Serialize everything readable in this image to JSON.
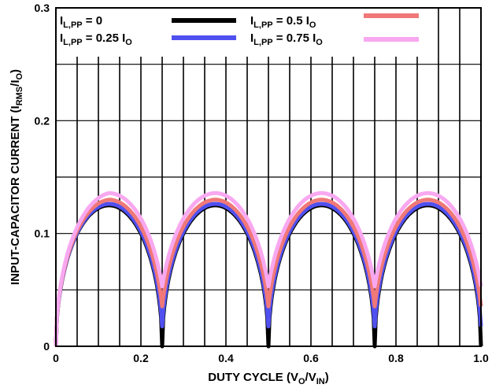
{
  "chart_data": {
    "type": "line",
    "xlabel": {
      "main": "DUTY CYCLE (V",
      "sub1": "O",
      "mid": "/V",
      "sub2": "IN",
      "end": ")"
    },
    "ylabel": {
      "main": "INPUT-CAPACITOR CURRENT (I",
      "sub": "RMS",
      "end": "/I",
      "sub2": "O",
      "close": ")"
    },
    "xlim": [
      0,
      1.0
    ],
    "ylim": [
      0,
      0.3
    ],
    "x_ticks": [
      {
        "value": 0,
        "label": "0"
      },
      {
        "value": 0.2,
        "label": "0.2"
      },
      {
        "value": 0.4,
        "label": "0.4"
      },
      {
        "value": 0.6,
        "label": "0.6"
      },
      {
        "value": 0.8,
        "label": "0.8"
      },
      {
        "value": 1.0,
        "label": "1.0"
      }
    ],
    "y_ticks": [
      {
        "value": 0,
        "label": "0"
      },
      {
        "value": 0.1,
        "label": "0.1"
      },
      {
        "value": 0.2,
        "label": "0.2"
      },
      {
        "value": 0.3,
        "label": "0.3"
      }
    ],
    "grid": true,
    "legend_position": "top",
    "series": [
      {
        "name": "I_L,PP = 0",
        "legend": {
          "main": "I",
          "sub": "L,PP",
          "rest": " = 0"
        },
        "color": "#000000",
        "k": 0
      },
      {
        "name": "I_L,PP = 0.25 I_O",
        "legend": {
          "main": "I",
          "sub": "L,PP",
          "rest": " = 0.25 I",
          "sub2": "O"
        },
        "color": "#5050f0",
        "k": 0.25
      },
      {
        "name": "I_L,PP = 0.5 I_O",
        "legend": {
          "main": "I",
          "sub": "L,PP",
          "rest": " = 0.5 I",
          "sub2": "O"
        },
        "color": "#f07878",
        "k": 0.5
      },
      {
        "name": "I_L,PP = 0.75 I_O",
        "legend": {
          "main": "I",
          "sub": "L,PP",
          "rest": " = 0.75 I",
          "sub2": "O"
        },
        "color": "#f8a8f0",
        "k": 0.75
      }
    ]
  }
}
